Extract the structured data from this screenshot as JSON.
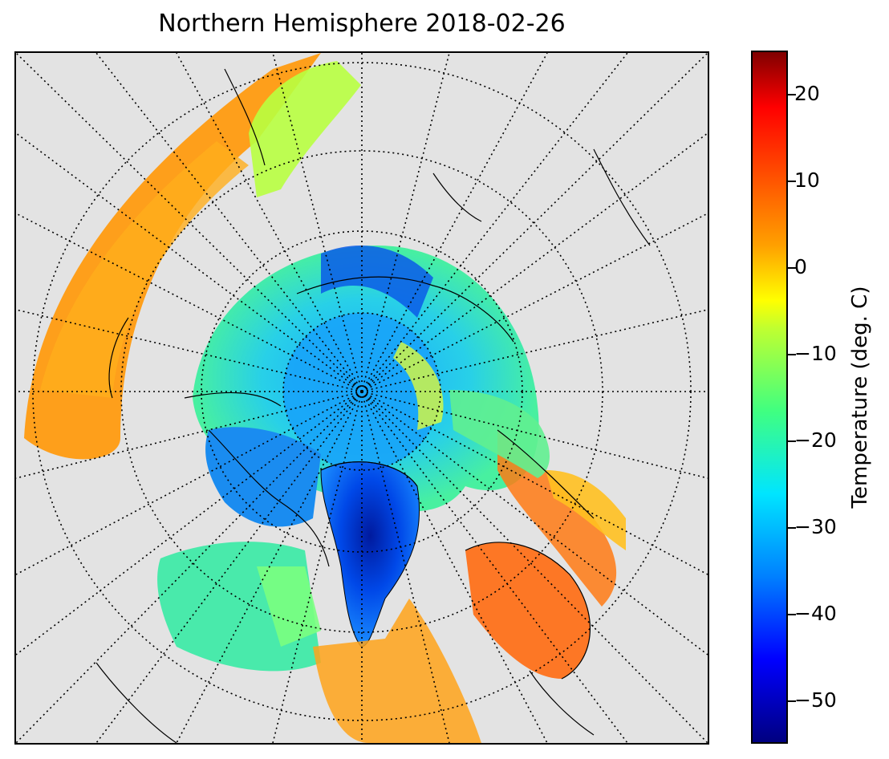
{
  "title": "Northern Hemisphere 2018-02-26",
  "colorbar": {
    "label": "Temperature (deg. C)",
    "ticks": [
      "20",
      "10",
      "0",
      "−10",
      "−20",
      "−30",
      "−40",
      "−50"
    ],
    "range": [
      -55,
      25
    ],
    "colormap": "jet"
  },
  "map": {
    "projection": "north-polar-stereographic",
    "background_color": "#e3e3e3",
    "gridlines": "dotted"
  }
}
